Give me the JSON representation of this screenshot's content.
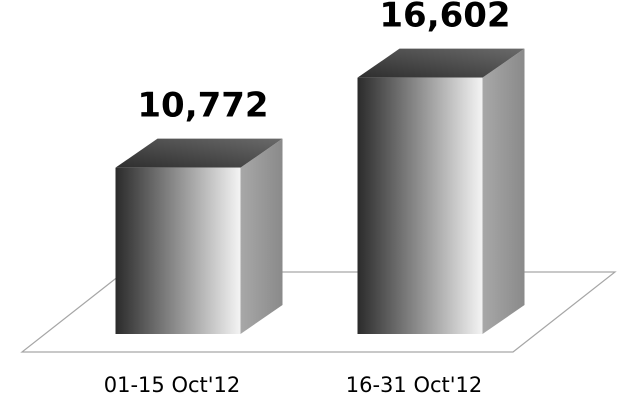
{
  "chart_data": {
    "type": "bar",
    "style": "3d-column",
    "categories": [
      "01-15 Oct'12",
      "16-31 Oct'12"
    ],
    "values": [
      10772,
      16602
    ],
    "value_labels": [
      "10,772",
      "16,602"
    ],
    "ylim": [
      0,
      18000
    ],
    "grid": false,
    "legend": "none",
    "colors": {
      "bar_dark": "#2b2b2b",
      "bar_light": "#f2f2f2",
      "bar_side": "#9a9a9a",
      "bar_top": "#4a4a4a",
      "floor_line": "#a6a6a6"
    }
  }
}
